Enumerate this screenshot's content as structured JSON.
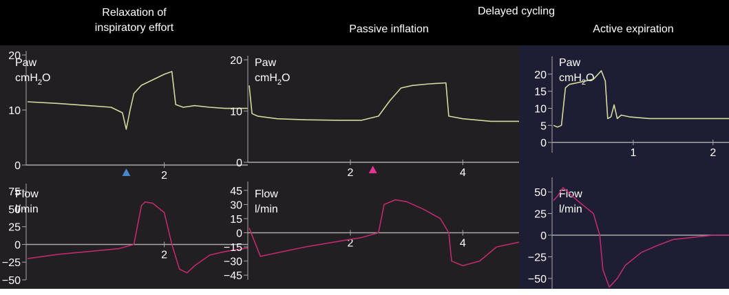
{
  "header": {
    "delayed_cycling": "Delayed cycling",
    "panel1": "Relaxation of\ninspiratory effort",
    "panel2": "Passive inflation",
    "panel3": "Active expiration"
  },
  "colors": {
    "header_bg": "#000000",
    "panel_bg": "#221f22",
    "panel3_bg": "#1d1e33",
    "paw_trace": "#d7dba0",
    "flow_trace": "#c02a6f",
    "axis": "#a9a9ab",
    "marker_blue": "#4a86cc",
    "marker_pink": "#e03590"
  },
  "chart_data": [
    {
      "type": "line",
      "panel": 1,
      "ylabel": "Paw",
      "unit_text": "cmH",
      "unit_sub": "2",
      "unit_tail": "O",
      "ylim": [
        0,
        20
      ],
      "yticks": [
        0,
        10,
        20
      ],
      "xlim": [
        0.2,
        3.1
      ],
      "xticks": [
        2
      ],
      "marker": {
        "x": 1.5,
        "color": "blue"
      },
      "series": [
        {
          "x": [
            0.2,
            0.6,
            1.0,
            1.3,
            1.45,
            1.5,
            1.55,
            1.6,
            1.7,
            1.85,
            2.0,
            2.1,
            2.15,
            2.25,
            2.4,
            2.6,
            2.8,
            3.1
          ],
          "y": [
            11.5,
            11.2,
            10.8,
            10.5,
            9.5,
            6.5,
            10,
            13,
            14.5,
            15.5,
            16.5,
            17,
            11,
            10.5,
            10.8,
            10.5,
            10.3,
            10.3
          ]
        }
      ]
    },
    {
      "type": "line",
      "panel": 1,
      "ylabel": "Flow",
      "unit_text": "l/min",
      "ylim": [
        -50,
        80
      ],
      "yticks": [
        -50,
        -25,
        0,
        25,
        50,
        75
      ],
      "xlim": [
        0.2,
        3.1
      ],
      "xticks": [
        2
      ],
      "series": [
        {
          "x": [
            0.2,
            0.6,
            1.0,
            1.4,
            1.6,
            1.7,
            1.75,
            1.85,
            2.0,
            2.1,
            2.2,
            2.3,
            2.4,
            2.6,
            2.8,
            3.1
          ],
          "y": [
            -20,
            -14,
            -10,
            -6,
            0,
            55,
            60,
            58,
            45,
            0,
            -35,
            -40,
            -30,
            -15,
            -10,
            -5
          ]
        }
      ]
    },
    {
      "type": "line",
      "panel": 2,
      "ylabel": "Paw",
      "unit_text": "cmH",
      "unit_sub": "2",
      "unit_tail": "O",
      "ylim": [
        0,
        20
      ],
      "yticks": [
        0,
        10,
        20
      ],
      "xlim": [
        0.2,
        5.0
      ],
      "xticks": [
        2,
        4
      ],
      "marker": {
        "x": 2.4,
        "color": "pink"
      },
      "series": [
        {
          "x": [
            0.2,
            0.25,
            0.35,
            0.7,
            1.2,
            1.8,
            2.2,
            2.5,
            2.7,
            2.9,
            3.1,
            3.4,
            3.7,
            3.75,
            4.0,
            4.5,
            5.0
          ],
          "y": [
            15,
            9.5,
            9,
            8.5,
            8.3,
            8.2,
            8.2,
            9,
            12,
            14.5,
            15,
            15.3,
            15.5,
            9,
            8.5,
            8,
            8
          ]
        }
      ]
    },
    {
      "type": "line",
      "panel": 2,
      "ylabel": "Flow",
      "unit_text": "l/min",
      "ylim": [
        -50,
        50
      ],
      "yticks": [
        -45,
        -30,
        -15,
        0,
        15,
        30,
        45
      ],
      "xlim": [
        0.2,
        5.0
      ],
      "xticks": [
        2,
        4
      ],
      "series": [
        {
          "x": [
            0.2,
            0.4,
            0.8,
            1.2,
            1.7,
            2.2,
            2.5,
            2.6,
            2.8,
            3.0,
            3.3,
            3.6,
            3.75,
            3.8,
            4.0,
            4.3,
            4.6,
            5.0
          ],
          "y": [
            5,
            -25,
            -20,
            -15,
            -10,
            -5,
            0,
            30,
            35,
            33,
            25,
            15,
            0,
            -30,
            -35,
            -30,
            -15,
            -10
          ]
        }
      ]
    },
    {
      "type": "line",
      "panel": 3,
      "ylabel": "Paw",
      "unit_text": "cmH",
      "unit_sub": "2",
      "unit_tail": "O",
      "ylim": [
        -3,
        24
      ],
      "yticks": [
        0,
        5,
        10,
        15,
        20
      ],
      "xlim": [
        0,
        2.2
      ],
      "xticks": [
        1,
        2
      ],
      "series": [
        {
          "x": [
            0,
            0.05,
            0.1,
            0.15,
            0.2,
            0.3,
            0.5,
            0.6,
            0.65,
            0.68,
            0.72,
            0.76,
            0.8,
            0.85,
            0.95,
            1.2,
            1.5,
            1.8,
            2.2
          ],
          "y": [
            5,
            4.5,
            5,
            16,
            17,
            17.5,
            18.5,
            21,
            18,
            7,
            7.5,
            11,
            7,
            8,
            7.5,
            7,
            7,
            7,
            7
          ]
        }
      ]
    },
    {
      "type": "line",
      "panel": 3,
      "ylabel": "Flow",
      "unit_text": "l/min",
      "ylim": [
        -62,
        62
      ],
      "yticks": [
        -50,
        -25,
        0,
        25,
        50
      ],
      "xlim": [
        0,
        2.2
      ],
      "xticks": [],
      "series": [
        {
          "x": [
            0,
            0.05,
            0.12,
            0.3,
            0.5,
            0.58,
            0.62,
            0.7,
            0.8,
            0.9,
            1.1,
            1.3,
            1.5,
            2.0,
            2.2
          ],
          "y": [
            40,
            45,
            55,
            40,
            25,
            0,
            -40,
            -60,
            -50,
            -35,
            -20,
            -12,
            -5,
            0,
            0
          ]
        }
      ]
    }
  ]
}
